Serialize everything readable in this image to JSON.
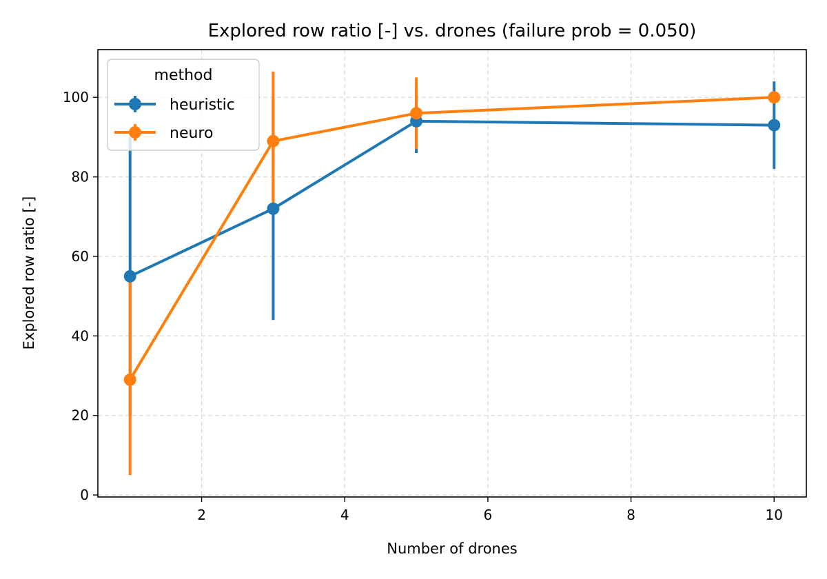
{
  "chart_data": {
    "type": "line",
    "title": "Explored row ratio [-] vs. drones (failure prob = 0.050)",
    "xlabel": "Number of drones",
    "ylabel": "Explored row ratio [-]",
    "xlim": [
      0.55,
      10.45
    ],
    "ylim": [
      -0.5,
      112
    ],
    "xticks": [
      2,
      4,
      6,
      8,
      10
    ],
    "yticks": [
      0,
      20,
      40,
      60,
      80,
      100
    ],
    "grid": true,
    "legend": {
      "title": "method",
      "placement": "top-left"
    },
    "x": [
      1,
      3,
      5,
      10
    ],
    "series": [
      {
        "name": "heuristic",
        "color": "#1f77b4",
        "values": [
          55,
          72,
          94,
          93
        ],
        "err_low": [
          20,
          44,
          86,
          82
        ],
        "err_high": [
          90,
          100,
          102,
          104
        ]
      },
      {
        "name": "neuro",
        "color": "#ff7f0e",
        "values": [
          29,
          89,
          96,
          100
        ],
        "err_low": [
          5,
          72,
          87,
          100
        ],
        "err_high": [
          55,
          106.5,
          105,
          100
        ]
      }
    ]
  }
}
